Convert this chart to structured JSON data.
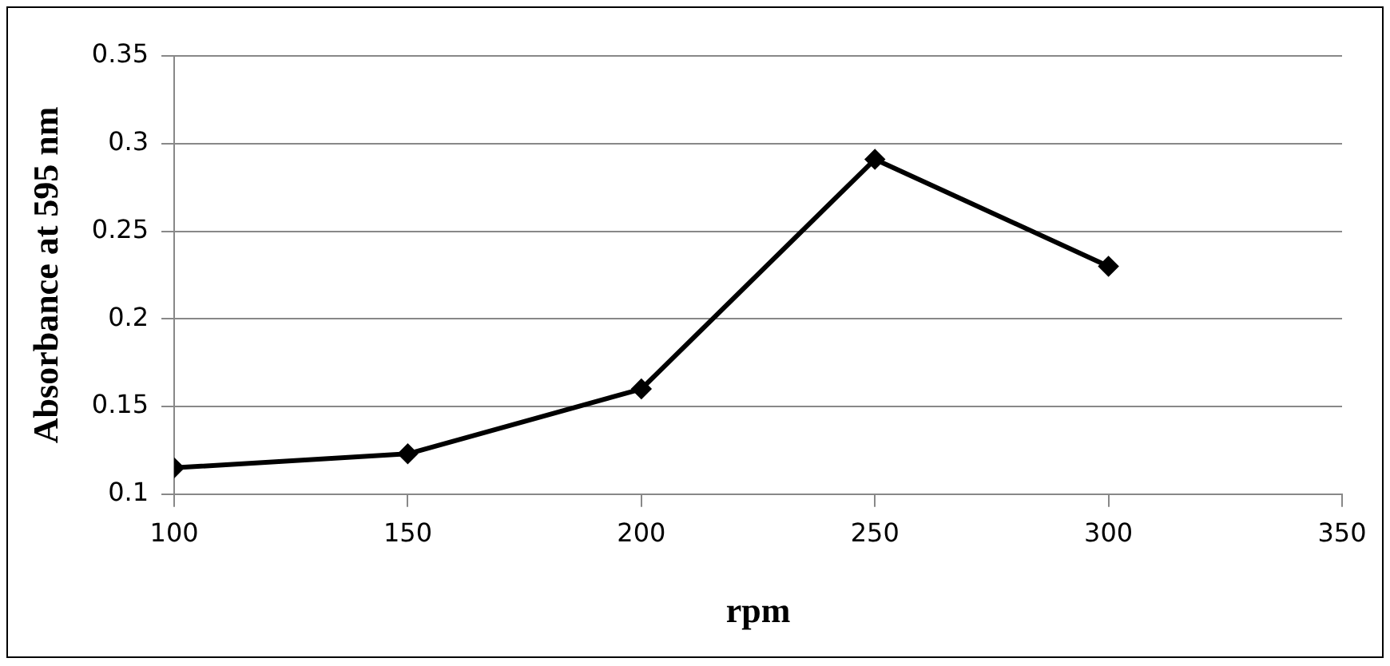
{
  "chart_data": {
    "type": "line",
    "xlabel": "rpm",
    "ylabel": "Absorbance at 595 nm",
    "x": [
      100,
      150,
      200,
      250,
      300
    ],
    "series": [
      {
        "color": "#000000",
        "values": [
          0.115,
          0.123,
          0.16,
          0.291,
          0.23
        ]
      }
    ],
    "xlim": [
      100,
      350
    ],
    "xticks": [
      100,
      150,
      200,
      250,
      300,
      350
    ],
    "ylim": [
      0.1,
      0.35
    ],
    "yticks": [
      0.1,
      0.15,
      0.2,
      0.25,
      0.3,
      0.35
    ],
    "grid": "y",
    "legend": false,
    "marker": "diamond",
    "line_style": "solid"
  }
}
